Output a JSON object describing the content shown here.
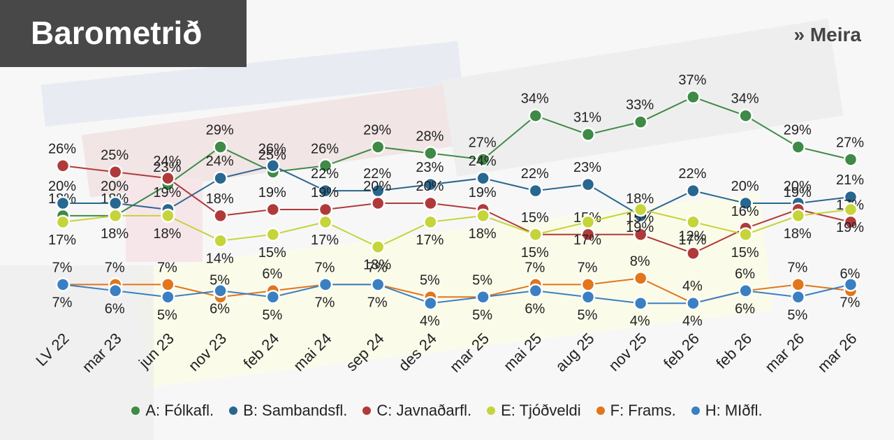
{
  "header": {
    "title": "Barometrið",
    "more_label": "» Meira"
  },
  "chart_data": {
    "type": "line",
    "title": "",
    "xlabel": "",
    "ylabel": "",
    "categories": [
      "LV 22",
      "mar 23",
      "jun 23",
      "nov 23",
      "feb 24",
      "mai 24",
      "sep 24",
      "des 24",
      "mar 25",
      "mai 25",
      "aug 25",
      "nov 25",
      "feb 26",
      "feb 26",
      "mar 26",
      "mar 26"
    ],
    "ylim": [
      0,
      40
    ],
    "grid": false,
    "legend_position": "bottom",
    "series": [
      {
        "name": "A: Fólkafl.",
        "color": "#3e8a46",
        "values": [
          18,
          18,
          23,
          29,
          25,
          26,
          29,
          28,
          27,
          34,
          31,
          33,
          37,
          34,
          29,
          27
        ]
      },
      {
        "name": "B: Sambandsfl.",
        "color": "#28678f",
        "values": [
          20,
          20,
          19,
          24,
          26,
          22,
          22,
          23,
          24,
          22,
          23,
          18,
          22,
          20,
          20,
          21
        ]
      },
      {
        "name": "C: Javnaðarfl.",
        "color": "#b03a3a",
        "values": [
          26,
          25,
          24,
          18,
          19,
          19,
          20,
          20,
          19,
          15,
          15,
          15,
          12,
          16,
          19,
          17
        ]
      },
      {
        "name": "E: Tjóðveldi",
        "color": "#c5d43a",
        "values": [
          17,
          18,
          18,
          14,
          15,
          17,
          13,
          17,
          18,
          15,
          17,
          19,
          17,
          15,
          18,
          19
        ]
      },
      {
        "name": "F: Frams.",
        "color": "#e1761a",
        "values": [
          7,
          7,
          7,
          5,
          6,
          7,
          7,
          5,
          5,
          7,
          7,
          8,
          4,
          6,
          7,
          6
        ]
      },
      {
        "name": "H: MIðfl.",
        "color": "#3a7fc2",
        "values": [
          7,
          6,
          5,
          6,
          5,
          7,
          7,
          4,
          5,
          6,
          5,
          4,
          4,
          6,
          5,
          7
        ]
      }
    ]
  }
}
